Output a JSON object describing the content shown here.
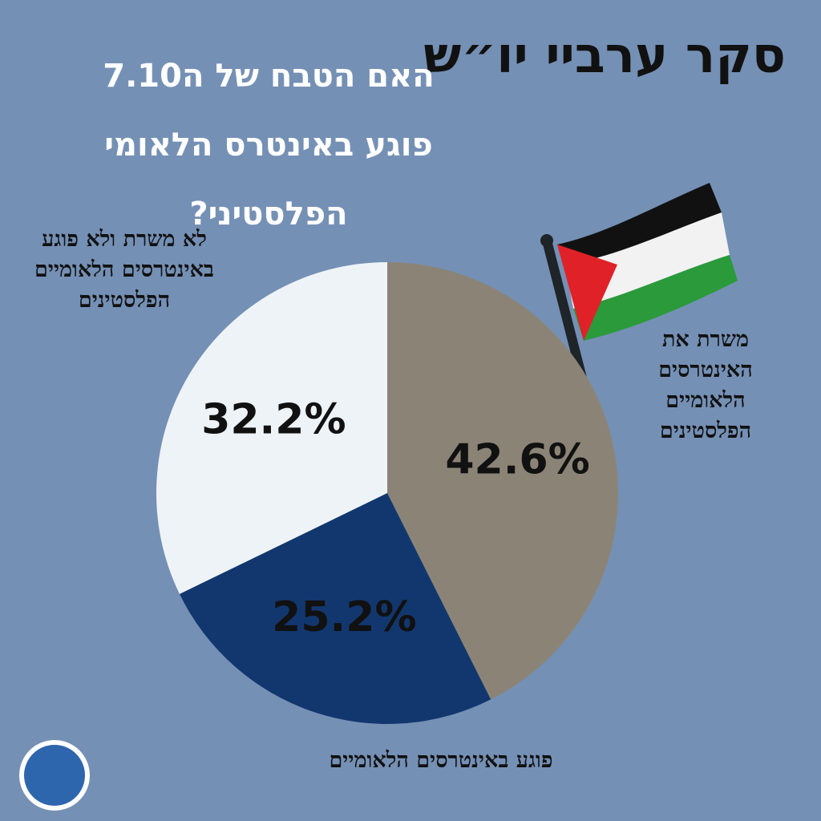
{
  "chart_data": {
    "type": "pie",
    "title": "סקר ערביי יו״ש",
    "subtitle_lines": [
      "האם הטבח של ה7.10",
      "פוגע באינטרס הלאומי הפלסטיני?"
    ],
    "categories": [
      "משרת את האינטרסים הלאומיים הפלסטינים",
      "פוגע באינטרסים הלאומיים",
      "לא משרת ולא פוגע באינטרסים הלאומיים הפלסטינים"
    ],
    "values": [
      42.6,
      25.2,
      32.2
    ],
    "value_labels": [
      "42.6%",
      "25.2%",
      "32.2%"
    ],
    "colors": [
      "#8b8476",
      "#12376e",
      "#eef3f7"
    ]
  }
}
